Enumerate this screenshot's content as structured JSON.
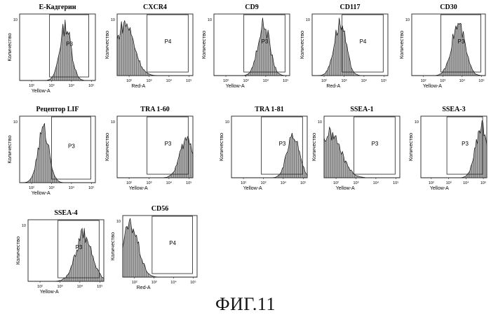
{
  "figure": {
    "caption": "ФИГ.11",
    "ylabel": "Количество",
    "panels": [
      {
        "title": "E-Кадгерин",
        "xlabel": "Yellow-A",
        "gate": "P3",
        "ytick": "10",
        "xticks": [
          "10²",
          "10³",
          "10⁴",
          "10⁵"
        ],
        "gate_range": [
          2.9,
          4.9
        ],
        "peak": 3.7,
        "spread": 0.28,
        "height": 0.92
      },
      {
        "title": "CXCR4",
        "xlabel": "Red-A",
        "gate": "P4",
        "ytick": "10",
        "xticks": [
          "10²",
          "10³",
          "10⁴",
          "10⁵"
        ],
        "gate_range": [
          2.9,
          5.0
        ],
        "peak": 1.8,
        "spread": 0.45,
        "height": 0.95
      },
      {
        "title": "CD9",
        "xlabel": "Yellow-A",
        "gate": "P3",
        "ytick": "10",
        "xticks": [
          "10²",
          "10³",
          "10⁴",
          "10⁵"
        ],
        "gate_range": [
          2.9,
          5.0
        ],
        "peak": 3.9,
        "spread": 0.3,
        "height": 0.93
      },
      {
        "title": "CD117",
        "xlabel": "Red-A",
        "gate": "P4",
        "ytick": "10",
        "xticks": [
          "10²",
          "10³",
          "10⁴",
          "10⁵"
        ],
        "gate_range": [
          2.9,
          5.0
        ],
        "peak": 2.8,
        "spread": 0.3,
        "height": 0.95
      },
      {
        "title": "CD30",
        "xlabel": "Yellow-A",
        "gate": "P3",
        "ytick": "10",
        "xticks": [
          "10²",
          "10³",
          "10⁴",
          "10⁵"
        ],
        "gate_range": [
          2.9,
          5.0
        ],
        "peak": 3.8,
        "spread": 0.35,
        "height": 0.92
      },
      {
        "title": "Рецептор LIF",
        "xlabel": "Yellow-A",
        "gate": "P3",
        "ytick": "10",
        "xticks": [
          "10²",
          "10³",
          "10⁴",
          "10⁵"
        ],
        "gate_range": [
          3.0,
          5.0
        ],
        "peak": 2.6,
        "spread": 0.28,
        "height": 0.9
      },
      {
        "title": "TRA 1-60",
        "xlabel": "Yellow-A",
        "gate": "P3",
        "ytick": "10",
        "xticks": [
          "10²",
          "10³",
          "10⁴",
          "10⁵"
        ],
        "gate_range": [
          2.9,
          5.0
        ],
        "peak": 4.9,
        "spread": 0.35,
        "height": 0.7
      },
      {
        "title": "TRA 1-81",
        "xlabel": "Yellow-A",
        "gate": "P3",
        "ytick": "10",
        "xticks": [
          "10²",
          "10³",
          "10⁴",
          "10⁵"
        ],
        "gate_range": [
          2.9,
          5.0
        ],
        "peak": 4.5,
        "spread": 0.3,
        "height": 0.82
      },
      {
        "title": "SSEA-1",
        "xlabel": "Yellow-A",
        "gate": "P3",
        "ytick": "10",
        "xticks": [
          "10²",
          "10³",
          "10⁴",
          "10⁵"
        ],
        "gate_range": [
          2.9,
          5.0
        ],
        "peak": 1.7,
        "spread": 0.55,
        "height": 0.8
      },
      {
        "title": "SSEA-3",
        "xlabel": "Yellow-A",
        "gate": "P3",
        "ytick": "10",
        "xticks": [
          "10²",
          "10³",
          "10⁴",
          "10⁵"
        ],
        "gate_range": [
          2.9,
          5.0
        ],
        "peak": 4.9,
        "spread": 0.35,
        "height": 0.92
      },
      {
        "title": "SSEA-4",
        "xlabel": "Yellow-A",
        "gate": "P3",
        "ytick": "10",
        "xticks": [
          "10²",
          "10³",
          "10⁴",
          "10⁵"
        ],
        "gate_range": [
          2.9,
          5.0
        ],
        "peak": 4.2,
        "spread": 0.42,
        "height": 0.85
      },
      {
        "title": "CD56",
        "xlabel": "Red-A",
        "gate": "P4",
        "ytick": "10",
        "xticks": [
          "10²",
          "10³",
          "10⁴",
          "10⁵"
        ],
        "gate_range": [
          2.9,
          5.0
        ],
        "peak": 1.8,
        "spread": 0.4,
        "height": 0.95
      }
    ]
  }
}
